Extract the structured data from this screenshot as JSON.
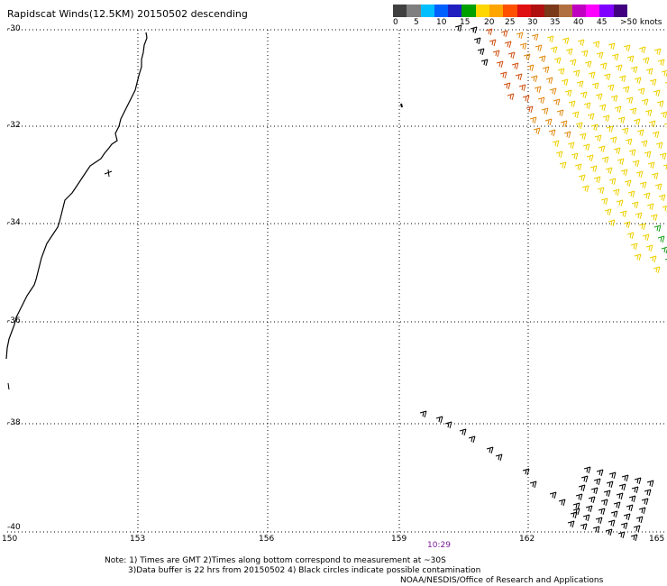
{
  "title": "Rapidscat Winds(12.5KM) 20150502 descending",
  "legend": {
    "labels": [
      "0",
      "5",
      "10",
      "15",
      "20",
      "25",
      "30",
      "35",
      "40",
      "45",
      ">50 knots"
    ],
    "colors": [
      "#404040",
      "#7f7f7f",
      "#00bfff",
      "#0060ff",
      "#2020c0",
      "#00a000",
      "#ffd700",
      "#ffa500",
      "#ff5000",
      "#e01010",
      "#b01010",
      "#7a3a1a",
      "#b07040",
      "#c000c0",
      "#ff00ff",
      "#8000ff",
      "#400080"
    ]
  },
  "lat_labels": [
    "-30",
    "-32",
    "-34",
    "-36",
    "-38",
    "-40"
  ],
  "lon_labels": [
    "150",
    "153",
    "156",
    "159",
    "162",
    "165"
  ],
  "time_label": "10:29",
  "notes": [
    "Note: 1) Times are GMT 2)Times along bottom correspond to measurement at ~30S",
    "3)Data buffer is 22 hrs from 20150502 4) Black circles indicate possible contamination",
    "NOAA/NESDIS/Office of Research and Applications"
  ],
  "wind_colors": {
    "calm": "#000000",
    "moderate": "#1aa01a",
    "strong": "#f0d000",
    "stronger": "#e08a10",
    "strongest": "#d05010"
  }
}
